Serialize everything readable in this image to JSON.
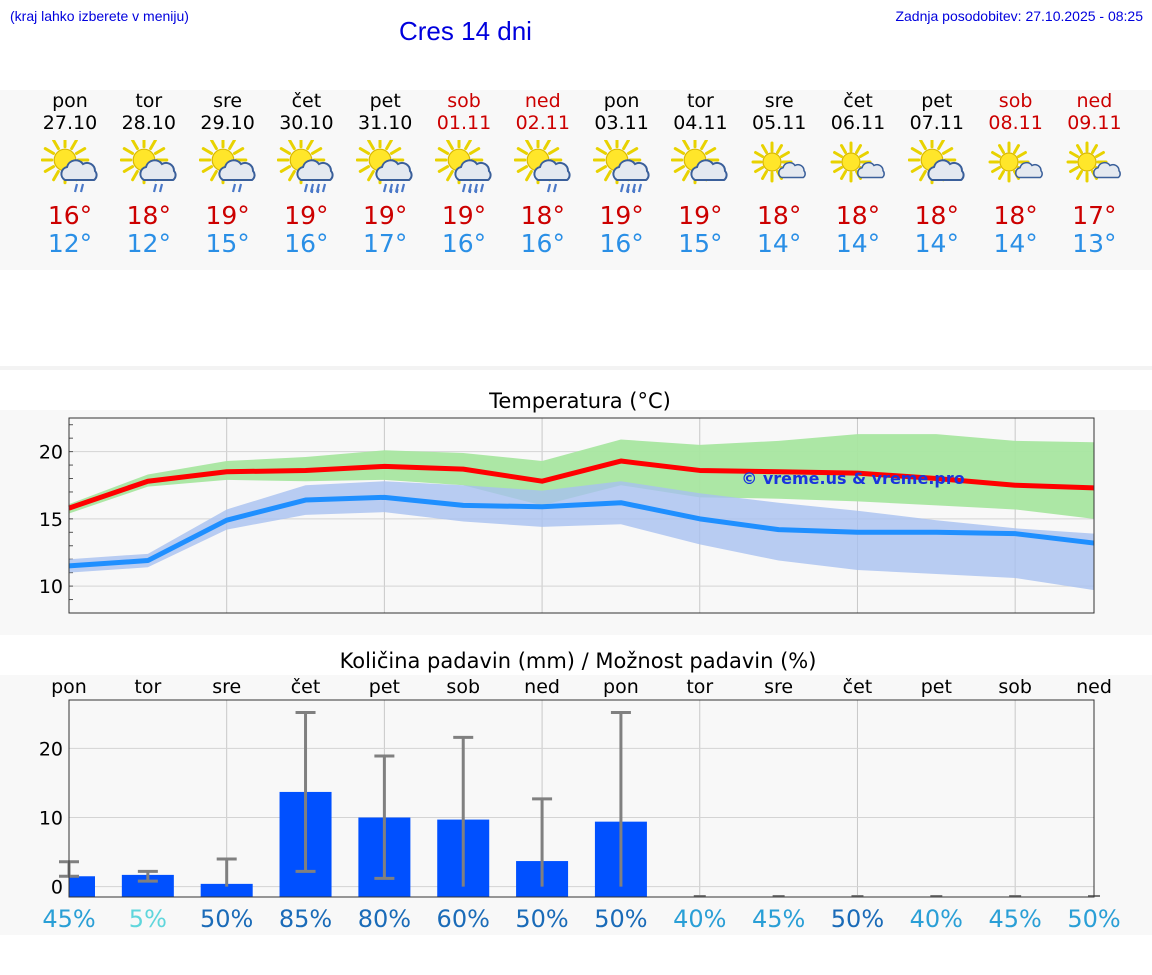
{
  "header": {
    "note": "(kraj lahko izberete v meniju)",
    "title": "Cres 14 dni",
    "updated": "Zadnja posodobitev: 27.10.2025 - 08:25"
  },
  "colors": {
    "weekday": "#000000",
    "weekend": "#cc0000",
    "tmax": "#cc0000",
    "tmin": "#2a8fe6",
    "max_line": "#ff0000",
    "min_line": "#1f8fff",
    "max_band": "#a8e6a0",
    "min_band": "#a8c0f0",
    "bar": "#0050ff",
    "errbar": "#808080"
  },
  "forecast": [
    {
      "day": "pon",
      "date": "27.10",
      "weekend": false,
      "icon": "sun-cloud-rain-icon",
      "tmax": "16°",
      "tmin": "12°"
    },
    {
      "day": "tor",
      "date": "28.10",
      "weekend": false,
      "icon": "sun-cloud-rain-icon",
      "tmax": "18°",
      "tmin": "12°"
    },
    {
      "day": "sre",
      "date": "29.10",
      "weekend": false,
      "icon": "sun-cloud-rain-icon",
      "tmax": "19°",
      "tmin": "15°"
    },
    {
      "day": "čet",
      "date": "30.10",
      "weekend": false,
      "icon": "sun-cloud-heavy-rain-icon",
      "tmax": "19°",
      "tmin": "16°"
    },
    {
      "day": "pet",
      "date": "31.10",
      "weekend": false,
      "icon": "sun-cloud-heavy-rain-icon",
      "tmax": "19°",
      "tmin": "17°"
    },
    {
      "day": "sob",
      "date": "01.11",
      "weekend": true,
      "icon": "sun-cloud-heavy-rain-icon",
      "tmax": "19°",
      "tmin": "16°"
    },
    {
      "day": "ned",
      "date": "02.11",
      "weekend": true,
      "icon": "sun-cloud-rain-icon",
      "tmax": "18°",
      "tmin": "16°"
    },
    {
      "day": "pon",
      "date": "03.11",
      "weekend": false,
      "icon": "sun-cloud-heavy-rain-icon",
      "tmax": "19°",
      "tmin": "16°"
    },
    {
      "day": "tor",
      "date": "04.11",
      "weekend": false,
      "icon": "sun-cloud-icon",
      "tmax": "19°",
      "tmin": "15°"
    },
    {
      "day": "sre",
      "date": "05.11",
      "weekend": false,
      "icon": "sun-small-cloud-icon",
      "tmax": "18°",
      "tmin": "14°"
    },
    {
      "day": "čet",
      "date": "06.11",
      "weekend": false,
      "icon": "sun-small-cloud-icon",
      "tmax": "18°",
      "tmin": "14°"
    },
    {
      "day": "pet",
      "date": "07.11",
      "weekend": false,
      "icon": "sun-cloud-icon",
      "tmax": "18°",
      "tmin": "14°"
    },
    {
      "day": "sob",
      "date": "08.11",
      "weekend": true,
      "icon": "sun-small-cloud-icon",
      "tmax": "18°",
      "tmin": "14°"
    },
    {
      "day": "ned",
      "date": "09.11",
      "weekend": true,
      "icon": "sun-small-cloud-icon",
      "tmax": "17°",
      "tmin": "13°"
    }
  ],
  "chart_data": [
    {
      "type": "line",
      "title": "Temperatura (°C)",
      "watermark": "© vreme.us & vreme.pro",
      "x": [
        1,
        2,
        3,
        4,
        5,
        6,
        7,
        8,
        9,
        10,
        11,
        12,
        13,
        14
      ],
      "ylim": [
        8,
        22.5
      ],
      "yticks": [
        10,
        15,
        20
      ],
      "grid": true,
      "series": [
        {
          "values": [
            15.8,
            17.8,
            18.5,
            18.6,
            18.9,
            18.7,
            17.8,
            19.3,
            18.6,
            18.5,
            18.4,
            18.0,
            17.5,
            17.3
          ],
          "low": [
            15.4,
            17.4,
            17.9,
            17.8,
            17.9,
            17.5,
            16.0,
            17.5,
            16.6,
            16.5,
            16.3,
            16.0,
            15.7,
            15.0
          ],
          "high": [
            16.1,
            18.3,
            19.3,
            19.6,
            20.1,
            19.9,
            19.3,
            20.9,
            20.5,
            20.8,
            21.3,
            21.3,
            20.8,
            20.7
          ]
        },
        {
          "values": [
            11.5,
            11.9,
            14.9,
            16.4,
            16.6,
            16.0,
            15.9,
            16.2,
            15.0,
            14.2,
            14.0,
            14.0,
            13.9,
            13.2
          ],
          "low": [
            11.0,
            11.4,
            14.2,
            15.3,
            15.5,
            14.8,
            14.4,
            14.6,
            13.1,
            11.9,
            11.2,
            10.9,
            10.6,
            9.7
          ],
          "high": [
            12.0,
            12.4,
            15.7,
            17.5,
            17.8,
            17.5,
            17.1,
            17.8,
            16.9,
            16.2,
            15.6,
            14.9,
            14.3,
            13.9
          ]
        }
      ]
    },
    {
      "type": "bar",
      "title": "Količina padavin (mm) / Možnost padavin (%)",
      "categories": [
        "pon",
        "tor",
        "sre",
        "čet",
        "pet",
        "sob",
        "ned",
        "pon",
        "tor",
        "sre",
        "čet",
        "pet",
        "sob",
        "ned"
      ],
      "values": [
        1.5,
        1.7,
        0.4,
        13.7,
        10.0,
        9.7,
        3.7,
        9.4,
        0,
        0,
        0,
        0,
        0,
        0
      ],
      "err_low": [
        1.5,
        0.8,
        0,
        2.2,
        1.2,
        0,
        0,
        0,
        0,
        0,
        0,
        0,
        0,
        0
      ],
      "err_high": [
        3.6,
        2.2,
        4.0,
        25.2,
        18.9,
        21.6,
        12.7,
        25.2,
        0,
        0,
        0,
        0,
        0,
        0
      ],
      "probability": [
        "45%",
        "5%",
        "50%",
        "85%",
        "80%",
        "60%",
        "50%",
        "50%",
        "40%",
        "45%",
        "50%",
        "40%",
        "45%",
        "50%"
      ],
      "prob_colors": [
        "#2a9fd6",
        "#5fd6dc",
        "#1a6bb8",
        "#1a6bb8",
        "#1a6bb8",
        "#1a6bb8",
        "#1a6bb8",
        "#1a6bb8",
        "#2a9fd6",
        "#2a9fd6",
        "#1a6bb8",
        "#2a9fd6",
        "#2a9fd6",
        "#2a9fd6"
      ],
      "ylim": [
        -1.5,
        27
      ],
      "yticks": [
        0,
        10,
        20
      ],
      "grid": true
    }
  ]
}
